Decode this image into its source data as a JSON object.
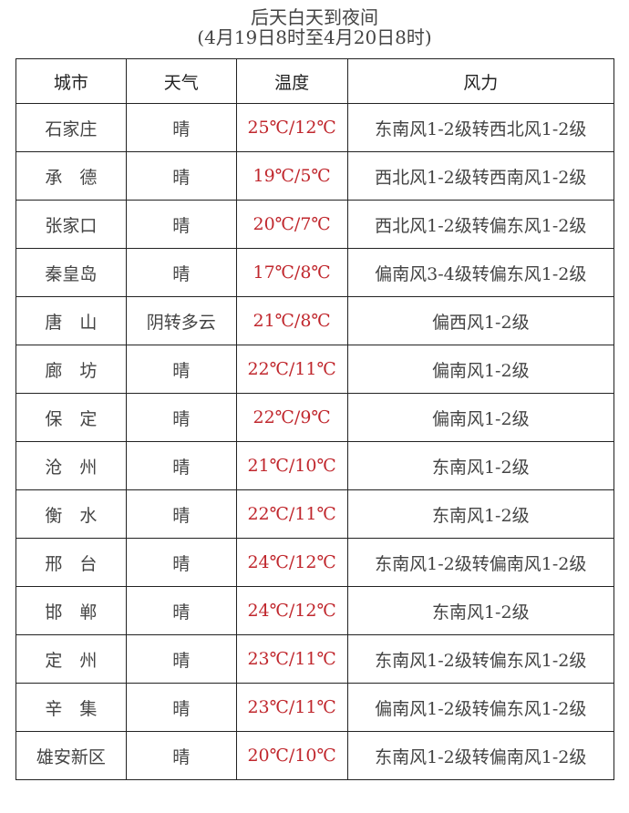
{
  "title": "后天白天到夜间",
  "subtitle": "(4月19日8时至4月20日8时)",
  "colors": {
    "temperature": "#c0272d",
    "text": "#444444"
  },
  "headers": [
    "城市",
    "天气",
    "温度",
    "风力"
  ],
  "rows": [
    {
      "city": "石家庄",
      "weather": "晴",
      "temp": "25℃/12℃",
      "wind": "东南风1-2级转西北风1-2级"
    },
    {
      "city": "承　德",
      "weather": "晴",
      "temp": "19℃/5℃",
      "wind": "西北风1-2级转西南风1-2级"
    },
    {
      "city": "张家口",
      "weather": "晴",
      "temp": "20℃/7℃",
      "wind": "西北风1-2级转偏东风1-2级"
    },
    {
      "city": "秦皇岛",
      "weather": "晴",
      "temp": "17℃/8℃",
      "wind": "偏南风3-4级转偏东风1-2级"
    },
    {
      "city": "唐　山",
      "weather": "阴转多云",
      "temp": "21℃/8℃",
      "wind": "偏西风1-2级"
    },
    {
      "city": "廊　坊",
      "weather": "晴",
      "temp": "22℃/11℃",
      "wind": "偏南风1-2级"
    },
    {
      "city": "保　定",
      "weather": "晴",
      "temp": "22℃/9℃",
      "wind": "偏南风1-2级"
    },
    {
      "city": "沧　州",
      "weather": "晴",
      "temp": "21℃/10℃",
      "wind": "东南风1-2级"
    },
    {
      "city": "衡　水",
      "weather": "晴",
      "temp": "22℃/11℃",
      "wind": "东南风1-2级"
    },
    {
      "city": "邢　台",
      "weather": "晴",
      "temp": "24℃/12℃",
      "wind": "东南风1-2级转偏南风1-2级"
    },
    {
      "city": "邯　郸",
      "weather": "晴",
      "temp": "24℃/12℃",
      "wind": "东南风1-2级"
    },
    {
      "city": "定　州",
      "weather": "晴",
      "temp": "23℃/11℃",
      "wind": "东南风1-2级转偏东风1-2级"
    },
    {
      "city": "辛　集",
      "weather": "晴",
      "temp": "23℃/11℃",
      "wind": "偏南风1-2级转偏东风1-2级"
    },
    {
      "city": "雄安新区",
      "weather": "晴",
      "temp": "20℃/10℃",
      "wind": "东南风1-2级转偏南风1-2级"
    }
  ]
}
